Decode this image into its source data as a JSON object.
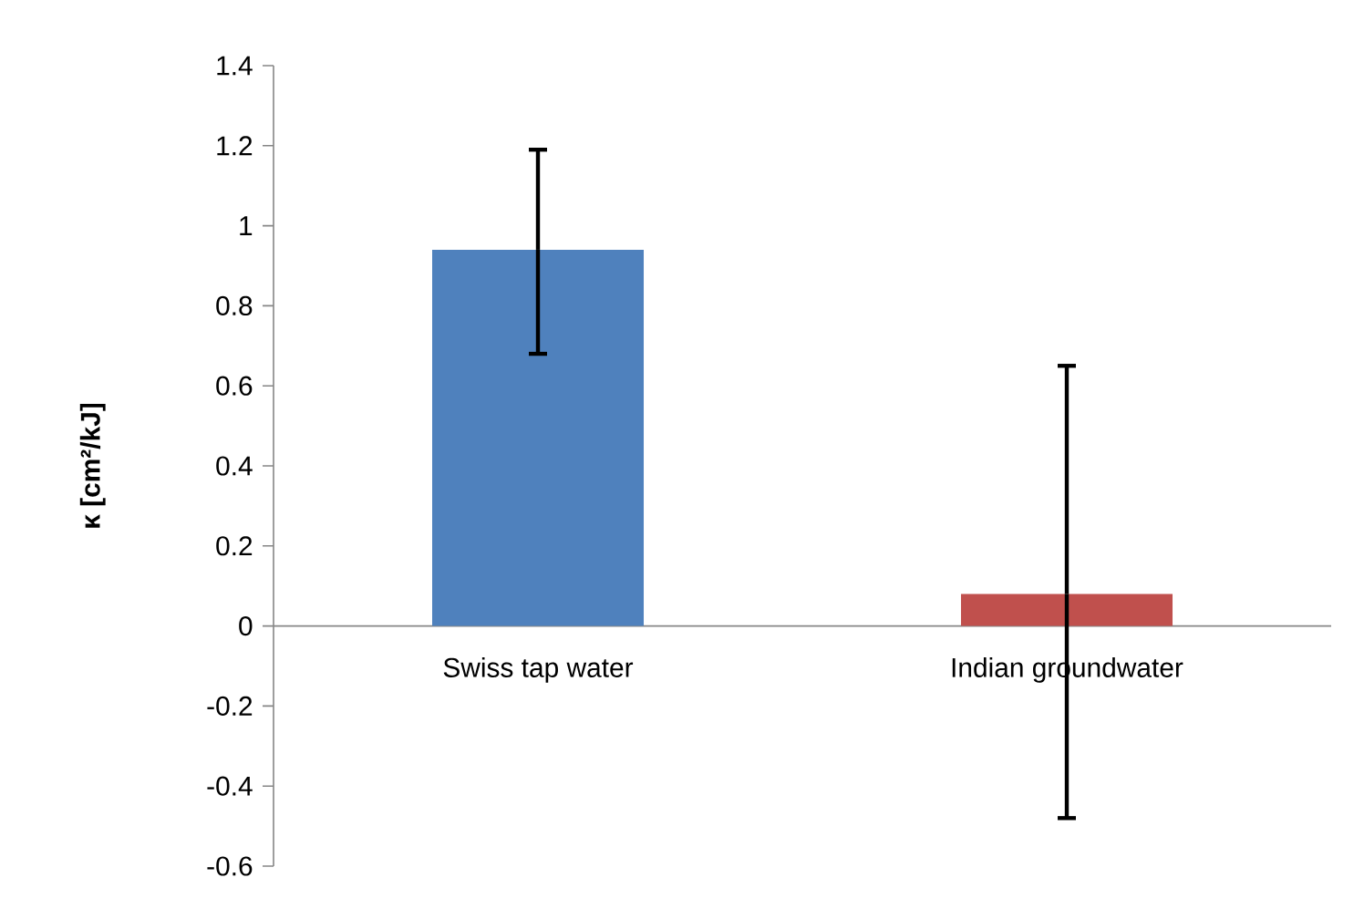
{
  "chart_data": {
    "type": "bar",
    "ylabel": "κ [cm²/kJ]",
    "categories": [
      "Swiss tap water",
      "Indian groundwater"
    ],
    "values": [
      0.94,
      0.08
    ],
    "colors": [
      "#4f81bd",
      "#c0504d"
    ],
    "errors": [
      [
        0.68,
        1.19
      ],
      [
        -0.48,
        0.65
      ]
    ],
    "ylim": [
      -0.6,
      1.4
    ],
    "yticks": [
      -0.6,
      -0.4,
      -0.2,
      0,
      0.2,
      0.4,
      0.6,
      0.8,
      1,
      1.2,
      1.4
    ],
    "grid": false
  }
}
